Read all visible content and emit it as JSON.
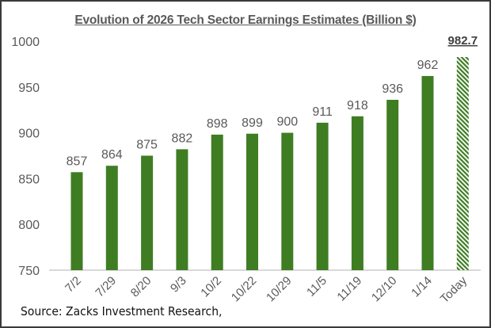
{
  "chart_data": {
    "type": "bar",
    "title": "Evolution of 2026  Tech Sector Earnings Estimates (Billion $)",
    "categories": [
      "7/2",
      "7/29",
      "8/20",
      "9/3",
      "10/2",
      "10/22",
      "10/29",
      "11/5",
      "11/19",
      "12/10",
      "1/14",
      "Today"
    ],
    "values": [
      857,
      864,
      875,
      882,
      898,
      899,
      900,
      911,
      918,
      936,
      962,
      982.7
    ],
    "data_labels": [
      "857",
      "864",
      "875",
      "882",
      "898",
      "899",
      "900",
      "911",
      "918",
      "936",
      "962",
      "982.7"
    ],
    "highlight": {
      "category": "Today",
      "style": "hatched",
      "label_bold_underlined": true
    },
    "yticks": [
      "750",
      "800",
      "850",
      "900",
      "950",
      "1000"
    ],
    "ylim": [
      750,
      1000
    ],
    "xlabel": "",
    "ylabel": "",
    "grid": false,
    "colors": {
      "bar": "#3f7d23",
      "text": "#595959",
      "axis": "#d9d9d9"
    }
  },
  "source": "Source: Zacks Investment Research,"
}
